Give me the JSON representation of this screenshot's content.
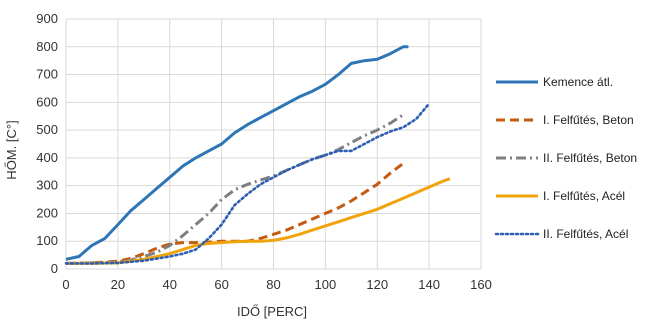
{
  "chart_data": {
    "type": "line",
    "title": "",
    "xlabel": "IDŐ [PERC]",
    "ylabel": "HŐM. [C°]",
    "xlim": [
      0,
      160
    ],
    "ylim": [
      0,
      900
    ],
    "xticks": [
      0,
      20,
      40,
      60,
      80,
      100,
      120,
      140,
      160
    ],
    "yticks": [
      0,
      100,
      200,
      300,
      400,
      500,
      600,
      700,
      800,
      900
    ],
    "grid": true,
    "legend_position": "right",
    "series": [
      {
        "name": "Kemence átl.",
        "color": "#2e75b6",
        "dash": "solid",
        "points": [
          [
            0,
            35
          ],
          [
            5,
            45
          ],
          [
            10,
            85
          ],
          [
            15,
            110
          ],
          [
            20,
            160
          ],
          [
            25,
            210
          ],
          [
            30,
            250
          ],
          [
            35,
            290
          ],
          [
            40,
            330
          ],
          [
            45,
            370
          ],
          [
            50,
            400
          ],
          [
            55,
            425
          ],
          [
            60,
            450
          ],
          [
            65,
            490
          ],
          [
            70,
            520
          ],
          [
            75,
            545
          ],
          [
            80,
            570
          ],
          [
            85,
            595
          ],
          [
            90,
            620
          ],
          [
            95,
            640
          ],
          [
            100,
            665
          ],
          [
            105,
            700
          ],
          [
            110,
            740
          ],
          [
            115,
            750
          ],
          [
            120,
            755
          ],
          [
            125,
            775
          ],
          [
            130,
            800
          ],
          [
            132,
            800
          ]
        ]
      },
      {
        "name": "I. Felfűtés, Beton",
        "color": "#c55a11",
        "dash": "dashed",
        "points": [
          [
            0,
            20
          ],
          [
            10,
            22
          ],
          [
            20,
            28
          ],
          [
            25,
            38
          ],
          [
            30,
            55
          ],
          [
            35,
            75
          ],
          [
            40,
            90
          ],
          [
            45,
            95
          ],
          [
            50,
            95
          ],
          [
            55,
            97
          ],
          [
            60,
            100
          ],
          [
            65,
            100
          ],
          [
            70,
            100
          ],
          [
            75,
            110
          ],
          [
            80,
            125
          ],
          [
            85,
            140
          ],
          [
            90,
            160
          ],
          [
            95,
            180
          ],
          [
            100,
            200
          ],
          [
            105,
            220
          ],
          [
            110,
            245
          ],
          [
            115,
            275
          ],
          [
            120,
            305
          ],
          [
            125,
            345
          ],
          [
            130,
            380
          ]
        ]
      },
      {
        "name": "II. Felfűtés, Beton",
        "color": "#7f7f7f",
        "dash": "dashdot",
        "points": [
          [
            0,
            20
          ],
          [
            10,
            22
          ],
          [
            20,
            25
          ],
          [
            25,
            32
          ],
          [
            30,
            45
          ],
          [
            35,
            60
          ],
          [
            40,
            85
          ],
          [
            45,
            120
          ],
          [
            50,
            160
          ],
          [
            55,
            200
          ],
          [
            60,
            250
          ],
          [
            65,
            285
          ],
          [
            70,
            305
          ],
          [
            75,
            320
          ],
          [
            80,
            335
          ],
          [
            85,
            355
          ],
          [
            90,
            375
          ],
          [
            95,
            395
          ],
          [
            100,
            410
          ],
          [
            105,
            430
          ],
          [
            110,
            455
          ],
          [
            115,
            480
          ],
          [
            120,
            500
          ],
          [
            125,
            525
          ],
          [
            130,
            555
          ]
        ]
      },
      {
        "name": "I. Felfűtés, Acél",
        "color": "#f0a30a",
        "dash": "solid",
        "points": [
          [
            0,
            20
          ],
          [
            10,
            20
          ],
          [
            20,
            22
          ],
          [
            30,
            35
          ],
          [
            40,
            55
          ],
          [
            50,
            85
          ],
          [
            55,
            92
          ],
          [
            60,
            95
          ],
          [
            65,
            98
          ],
          [
            70,
            100
          ],
          [
            75,
            100
          ],
          [
            80,
            103
          ],
          [
            85,
            112
          ],
          [
            90,
            125
          ],
          [
            95,
            140
          ],
          [
            100,
            155
          ],
          [
            105,
            170
          ],
          [
            110,
            185
          ],
          [
            115,
            200
          ],
          [
            120,
            215
          ],
          [
            125,
            235
          ],
          [
            130,
            255
          ],
          [
            135,
            275
          ],
          [
            140,
            295
          ],
          [
            145,
            315
          ],
          [
            148,
            325
          ]
        ]
      },
      {
        "name": "II. Felfűtés, Acél",
        "color": "#2f5fb3",
        "dash": "dotted",
        "points": [
          [
            0,
            20
          ],
          [
            10,
            20
          ],
          [
            20,
            22
          ],
          [
            30,
            30
          ],
          [
            40,
            45
          ],
          [
            45,
            55
          ],
          [
            50,
            70
          ],
          [
            55,
            110
          ],
          [
            60,
            160
          ],
          [
            65,
            230
          ],
          [
            70,
            270
          ],
          [
            75,
            305
          ],
          [
            80,
            330
          ],
          [
            85,
            355
          ],
          [
            90,
            375
          ],
          [
            95,
            395
          ],
          [
            100,
            410
          ],
          [
            105,
            425
          ],
          [
            110,
            425
          ],
          [
            115,
            450
          ],
          [
            120,
            475
          ],
          [
            125,
            495
          ],
          [
            130,
            510
          ],
          [
            135,
            540
          ],
          [
            140,
            595
          ]
        ]
      }
    ]
  }
}
